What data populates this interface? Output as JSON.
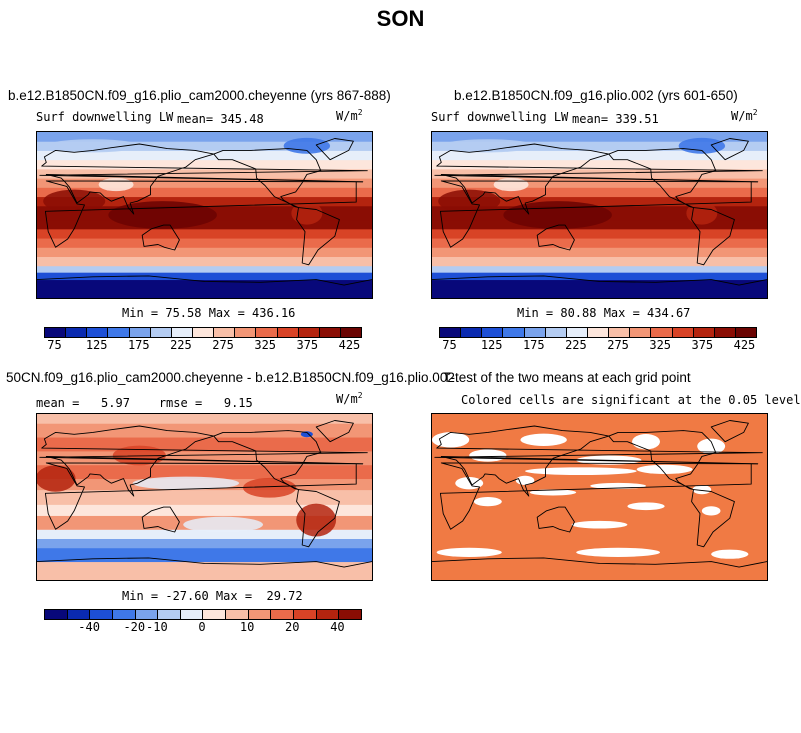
{
  "title": "SON",
  "chart_data": [
    {
      "type": "heatmap",
      "title": "b.e12.B1850CN.f09_g16.plio_cam2000.cheyenne (yrs 867-888)",
      "subtitle_left": "Surf downwelling LW",
      "mean_label": "mean= 345.48",
      "units_base": "W/m",
      "units_exp": "2",
      "min_max": "Min =  75.58 Max = 436.16",
      "colorbar_ticks": [
        "75",
        "125",
        "175",
        "225",
        "275",
        "325",
        "375",
        "425"
      ]
    },
    {
      "type": "heatmap",
      "title": "b.e12.B1850CN.f09_g16.plio.002 (yrs 601-650)",
      "subtitle_left": "Surf downwelling LW",
      "mean_label": "mean= 339.51",
      "units_base": "W/m",
      "units_exp": "2",
      "min_max": "Min =  80.88 Max = 434.67",
      "colorbar_ticks": [
        "75",
        "125",
        "175",
        "225",
        "275",
        "325",
        "375",
        "425"
      ]
    },
    {
      "type": "heatmap",
      "title": "50CN.f09_g16.plio_cam2000.cheyenne - b.e12.B1850CN.f09_g16.plio.002",
      "subtitle_left": "mean =   5.97    rmse =   9.15",
      "units_base": "W/m",
      "units_exp": "2",
      "min_max": "Min = -27.60 Max =  29.72",
      "colorbar_ticks": [
        "-40",
        "-20",
        "-10",
        "0",
        "10",
        "20",
        "40"
      ]
    },
    {
      "type": "heatmap",
      "title": "T-test of the two means at each grid point",
      "subtitle": "Colored cells are significant at the 0.05 level"
    }
  ],
  "colors": {
    "abs_scale": [
      "#08087a",
      "#0a2ab0",
      "#1d4fd6",
      "#3f78e8",
      "#7aa3ec",
      "#b4ccf2",
      "#e6eefa",
      "#fde6dc",
      "#f8bfa8",
      "#f29676",
      "#ea6b4b",
      "#d84326",
      "#b4240f",
      "#8a0d04",
      "#6b0402"
    ],
    "diff_scale": [
      "#08087a",
      "#0a2ab0",
      "#1d4fd6",
      "#3f78e8",
      "#7aa3ec",
      "#b4ccf2",
      "#e6eefa",
      "#fde6dc",
      "#f8bfa8",
      "#f29676",
      "#ea6b4b",
      "#d84326",
      "#b4240f",
      "#8a0d04"
    ],
    "ttest_fill": "#f07a44"
  }
}
